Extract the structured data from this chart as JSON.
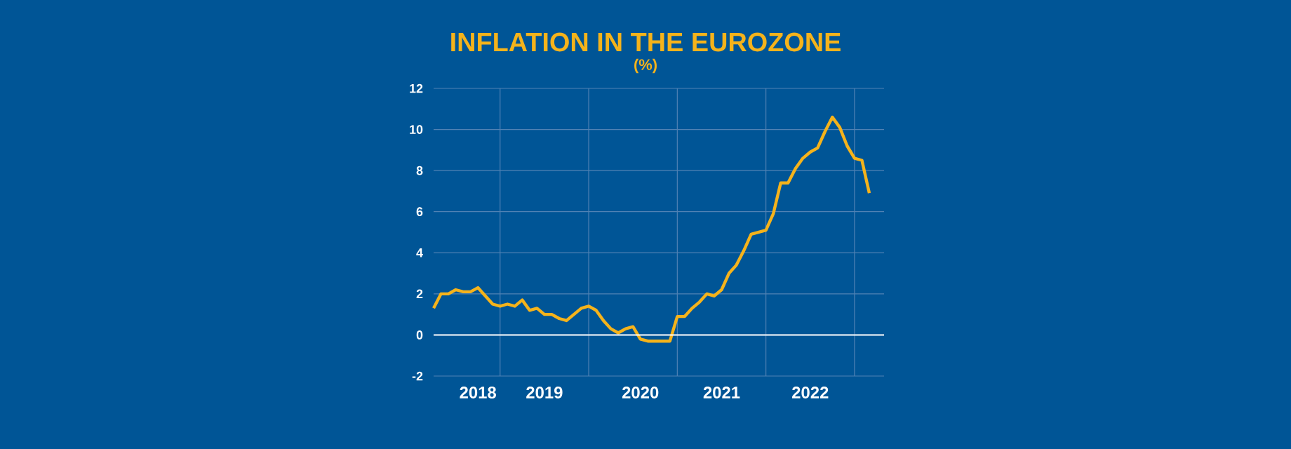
{
  "chart_data": {
    "type": "line",
    "title": "INFLATION IN THE EUROZONE",
    "subtitle": "(%)",
    "x": [
      "2018-04",
      "2018-05",
      "2018-06",
      "2018-07",
      "2018-08",
      "2018-09",
      "2018-10",
      "2018-11",
      "2018-12",
      "2019-01",
      "2019-02",
      "2019-03",
      "2019-04",
      "2019-05",
      "2019-06",
      "2019-07",
      "2019-08",
      "2019-09",
      "2019-10",
      "2019-11",
      "2019-12",
      "2020-01",
      "2020-02",
      "2020-03",
      "2020-04",
      "2020-05",
      "2020-06",
      "2020-07",
      "2020-08",
      "2020-09",
      "2020-10",
      "2020-11",
      "2020-12",
      "2021-01",
      "2021-02",
      "2021-03",
      "2021-04",
      "2021-05",
      "2021-06",
      "2021-07",
      "2021-08",
      "2021-09",
      "2021-10",
      "2021-11",
      "2021-12",
      "2022-01",
      "2022-02",
      "2022-03",
      "2022-04",
      "2022-05",
      "2022-06",
      "2022-07",
      "2022-08",
      "2022-09",
      "2022-10",
      "2022-11",
      "2022-12",
      "2023-01",
      "2023-02",
      "2023-03"
    ],
    "series": [
      {
        "color": "#f5b31b",
        "values": [
          1.3,
          2.0,
          2.0,
          2.2,
          2.1,
          2.1,
          2.3,
          1.9,
          1.5,
          1.4,
          1.5,
          1.4,
          1.7,
          1.2,
          1.3,
          1.0,
          1.0,
          0.8,
          0.7,
          1.0,
          1.3,
          1.4,
          1.2,
          0.7,
          0.3,
          0.1,
          0.3,
          0.4,
          -0.2,
          -0.3,
          -0.3,
          -0.3,
          -0.3,
          0.9,
          0.9,
          1.3,
          1.6,
          2.0,
          1.9,
          2.2,
          3.0,
          3.4,
          4.1,
          4.9,
          5.0,
          5.1,
          5.9,
          7.4,
          7.4,
          8.1,
          8.6,
          8.9,
          9.1,
          9.9,
          10.6,
          10.1,
          9.2,
          8.6,
          8.5,
          6.9
        ]
      }
    ],
    "xlim": [
      "2018-04",
      "2023-05"
    ],
    "xticks": [
      {
        "value": "2018-10",
        "label": "2018"
      },
      {
        "value": "2019-07",
        "label": "2019"
      },
      {
        "value": "2020-08",
        "label": "2020"
      },
      {
        "value": "2021-07",
        "label": "2021"
      },
      {
        "value": "2022-07",
        "label": "2022"
      },
      {
        "value": "2019-01",
        "label": null
      },
      {
        "value": "2020-01",
        "label": null
      },
      {
        "value": "2021-01",
        "label": null
      },
      {
        "value": "2022-01",
        "label": null
      },
      {
        "value": "2023-01",
        "label": null
      }
    ],
    "ylim": [
      -2,
      12
    ],
    "yticks": [
      -2,
      0,
      2,
      4,
      6,
      8,
      10,
      12
    ],
    "grid": true,
    "ref_lines": [
      {
        "axis": "y",
        "value": 0,
        "color": "#ffffff"
      }
    ]
  }
}
